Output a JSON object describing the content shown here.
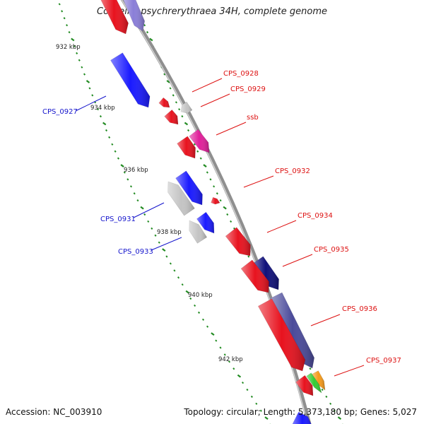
{
  "title": "Colwellia psychrerythraea 34H, complete genome",
  "footer": {
    "accession": "Accession: NC_003910",
    "summary": "Topology: circular; Length: 5,373,180 bp; Genes: 5,027"
  },
  "colors": {
    "backbone": "#8f8f8f",
    "tick_major": "#228b22",
    "tick_minor": "#2e8b2e",
    "red": "#e8121e",
    "blue": "#1a1aff",
    "grey": "#c4c4c4",
    "navy": "#10107a",
    "slate": "#4a4a9a",
    "magenta": "#e0209a",
    "lavender": "#8a7ed8",
    "green": "#33cc33",
    "orange": "#f59a1a"
  },
  "scale_labels": [
    "932 kbp",
    "934 kbp",
    "936 kbp",
    "938 kbp",
    "940 kbp",
    "942 kbp"
  ],
  "genes": [
    {
      "name": "red-top",
      "color": "red"
    },
    {
      "name": "lavender-top",
      "color": "lavender"
    },
    {
      "name": "CPS_0927",
      "color": "blue",
      "label": "CPS_0927"
    },
    {
      "name": "CPS_0928",
      "color": "red",
      "label": "CPS_0928"
    },
    {
      "name": "CPS_0929",
      "color": "grey",
      "label": "CPS_0929"
    },
    {
      "name": "small-red",
      "color": "red"
    },
    {
      "name": "ssb-red",
      "color": "red"
    },
    {
      "name": "ssb",
      "color": "magenta",
      "label": "ssb"
    },
    {
      "name": "CPS_0931",
      "color": "grey",
      "label": "CPS_0931"
    },
    {
      "name": "CPS_0931b",
      "color": "blue"
    },
    {
      "name": "CPS_0932",
      "color": "red",
      "label": "CPS_0932"
    },
    {
      "name": "CPS_0933",
      "color": "grey",
      "label": "CPS_0933"
    },
    {
      "name": "CPS_0933b",
      "color": "blue"
    },
    {
      "name": "CPS_0934",
      "color": "red",
      "label": "CPS_0934"
    },
    {
      "name": "CPS_0935",
      "color": "navy",
      "label": "CPS_0935"
    },
    {
      "name": "CPS_0935r",
      "color": "red"
    },
    {
      "name": "CPS_0936",
      "color": "slate",
      "label": "CPS_0936"
    },
    {
      "name": "CPS_0936r",
      "color": "red"
    },
    {
      "name": "CPS_0937",
      "color": "orange",
      "label": "CPS_0937"
    },
    {
      "name": "green-small",
      "color": "green"
    },
    {
      "name": "red-bottom",
      "color": "red"
    },
    {
      "name": "blue-bottom",
      "color": "blue"
    }
  ]
}
